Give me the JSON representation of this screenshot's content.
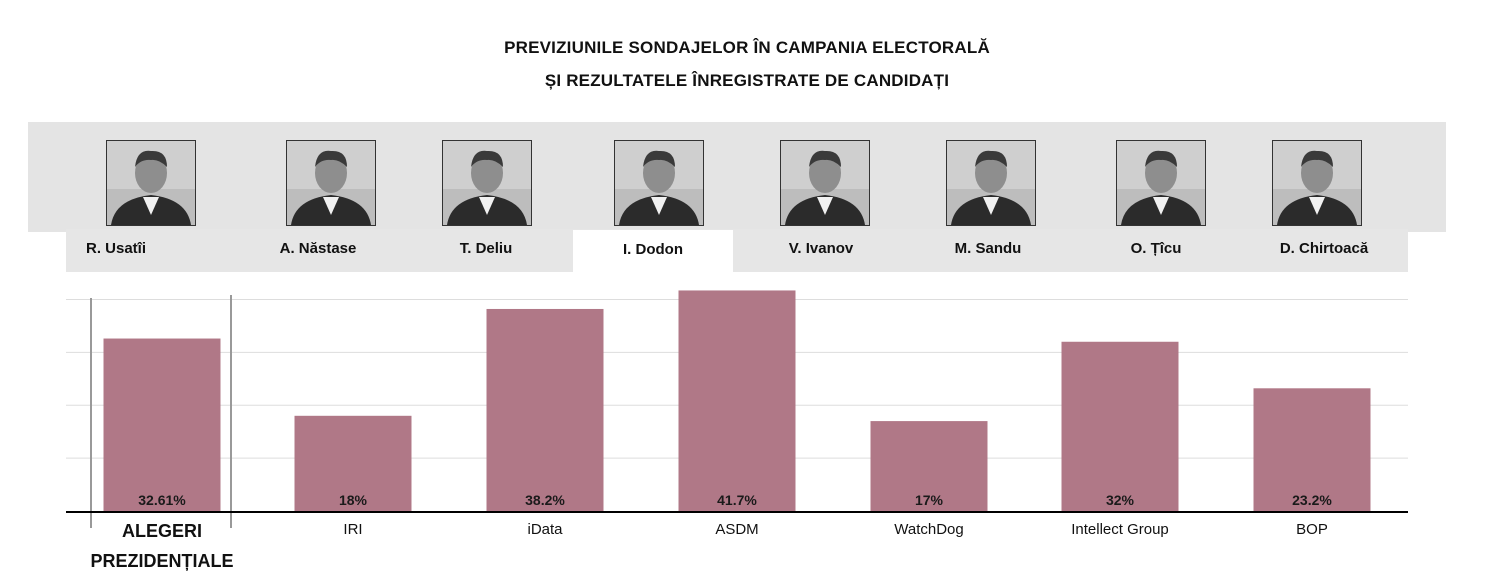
{
  "header": {
    "title_line1": "PREVIZIUNILE SONDAJELOR ÎN CAMPANIA ELECTORALĂ",
    "title_line2": "ȘI REZULTATELE ÎNREGISTRATE DE CANDIDAȚI"
  },
  "candidates": [
    {
      "name": "R. Usatîi",
      "photo_icon": "portrait-photo"
    },
    {
      "name": "A. Năstase",
      "photo_icon": "portrait-photo"
    },
    {
      "name": "T. Deliu",
      "photo_icon": "portrait-photo"
    },
    {
      "name": "I. Dodon",
      "photo_icon": "portrait-photo",
      "selected": true
    },
    {
      "name": "V. Ivanov",
      "photo_icon": "portrait-photo"
    },
    {
      "name": "M. Sandu",
      "photo_icon": "portrait-photo"
    },
    {
      "name": "O. Țîcu",
      "photo_icon": "portrait-photo"
    },
    {
      "name": "D. Chirtoacă",
      "photo_icon": "portrait-photo"
    }
  ],
  "chart_data": {
    "type": "bar",
    "categories": [
      "ALEGERI PREZIDENȚIALE",
      "IRI",
      "iData",
      "ASDM",
      "WatchDog",
      "Intellect Group",
      "BOP"
    ],
    "category_lines": [
      [
        "ALEGERI",
        "PREZIDENȚIALE"
      ],
      [
        "IRI"
      ],
      [
        "iData"
      ],
      [
        "ASDM"
      ],
      [
        "WatchDog"
      ],
      [
        "Intellect Group"
      ],
      [
        "BOP"
      ]
    ],
    "values": [
      32.61,
      18,
      38.2,
      41.7,
      17,
      32,
      23.2
    ],
    "value_labels": [
      "32.61%",
      "18%",
      "38.2%",
      "41.7%",
      "17%",
      "32%",
      "23.2%"
    ],
    "highlighted_category": "ALEGERI PREZIDENȚIALE",
    "ylim": [
      0,
      45
    ],
    "gridlines": [
      10,
      20,
      30,
      40
    ],
    "grid": true,
    "title": "",
    "xlabel": "",
    "ylabel": "",
    "bar_color": "#b07887",
    "grid_color": "#dddddd",
    "axis_color": "#000000"
  },
  "colors": {
    "photo_band": "#e4e4e4",
    "tab_bar": "#e6e6e6",
    "active_tab": "#ffffff"
  }
}
